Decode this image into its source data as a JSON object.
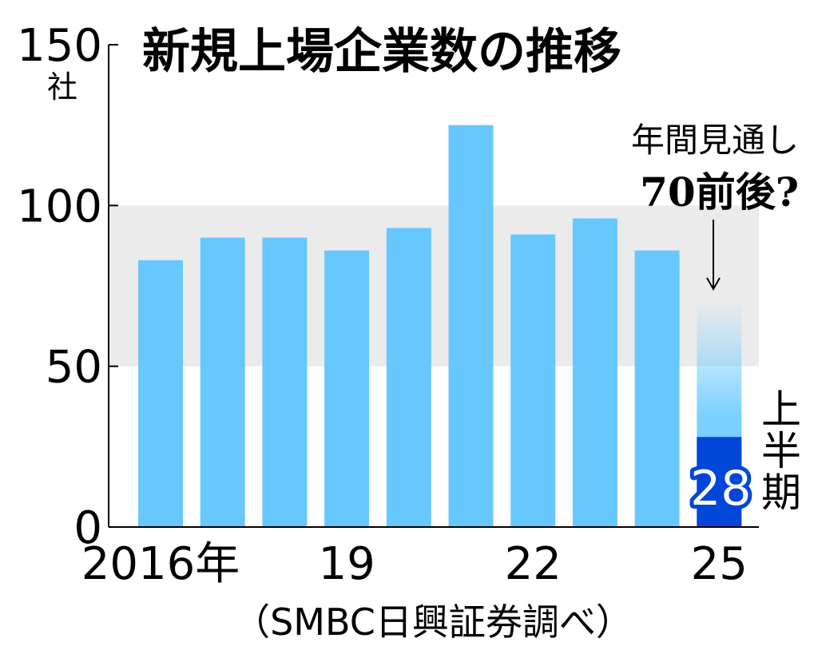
{
  "chart_data": {
    "type": "bar",
    "title": "新規上場企業数の推移",
    "y_unit": "社",
    "ylim": [
      0,
      150
    ],
    "yticks": [
      "0",
      "50",
      "100",
      "150"
    ],
    "x_tick_labels": [
      {
        "index": 0,
        "label": "2016年"
      },
      {
        "index": 3,
        "label": "19"
      },
      {
        "index": 6,
        "label": "22"
      },
      {
        "index": 9,
        "label": "25"
      }
    ],
    "categories": [
      "2016",
      "2017",
      "2018",
      "2019",
      "2020",
      "2021",
      "2022",
      "2023",
      "2024",
      "2025"
    ],
    "values": [
      83,
      90,
      90,
      86,
      93,
      125,
      91,
      96,
      86,
      70
    ],
    "highlight_band": [
      50,
      100
    ],
    "partial_year": {
      "category": "2025",
      "value": 28,
      "label": "28",
      "side_label": "上半期",
      "forecast_label_line1": "年間見通し",
      "forecast_label_line2": "70前後?",
      "forecast_value": 70
    },
    "source": "（SMBC日興証券調べ）",
    "colors": {
      "bar": "#66c8ff",
      "highlight": "#0047d9",
      "band": "#ebebeb",
      "axis": "#000000"
    },
    "grid": false
  }
}
